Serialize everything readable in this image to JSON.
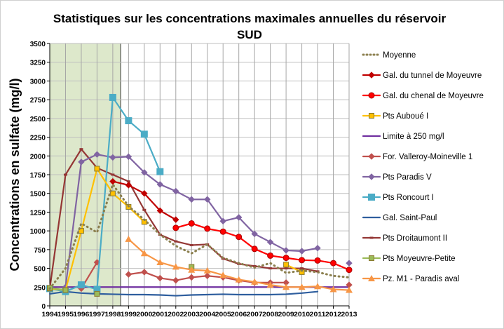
{
  "chart_data": {
    "type": "line",
    "title": "Statistiques sur les concentrations maximales annuelles du réservoir",
    "title_line2": "SUD",
    "xlabel": "",
    "ylabel": "Concentrations en sulfate   (mg/l)",
    "ylim": [
      0,
      3500
    ],
    "yticks": [
      0,
      250,
      500,
      750,
      1000,
      1250,
      1500,
      1750,
      2000,
      2250,
      2500,
      2750,
      3000,
      3250,
      3500
    ],
    "x": [
      1994,
      1995,
      1996,
      1997,
      1998,
      1999,
      2000,
      2001,
      2002,
      2003,
      2004,
      2005,
      2006,
      2007,
      2008,
      2009,
      2010,
      2011,
      2012,
      2013
    ],
    "grid": true,
    "legend_position": "right",
    "shaded_period": [
      1994,
      1998.5
    ],
    "shade_color": "#DDE8CB",
    "series": [
      {
        "name": "Moyenne",
        "color": "#8B7F4E",
        "dash": true,
        "marker": "none",
        "values": [
          230,
          500,
          1100,
          980,
          1620,
          1330,
          1150,
          950,
          800,
          700,
          820,
          640,
          570,
          510,
          570,
          440,
          470,
          450,
          400,
          380
        ]
      },
      {
        "name": "Gal. du tunnel de Moyeuvre",
        "color": "#C00000",
        "marker": "diamond",
        "values": [
          null,
          null,
          null,
          null,
          1660,
          1610,
          1500,
          1270,
          1150,
          null,
          null,
          null,
          null,
          null,
          null,
          null,
          null,
          null,
          null,
          null
        ]
      },
      {
        "name": "Gal. du chenal de Moyeuvre",
        "color": "#FF0000",
        "marker": "circle",
        "values": [
          null,
          null,
          null,
          null,
          null,
          null,
          null,
          null,
          1040,
          1100,
          1030,
          990,
          920,
          760,
          670,
          640,
          610,
          605,
          570,
          480
        ]
      },
      {
        "name": "Pts Auboué I",
        "color": "#FFC000",
        "marker": "square-small",
        "values": [
          230,
          210,
          1000,
          1830,
          1500,
          1320,
          1120,
          null,
          null,
          null,
          null,
          null,
          null,
          null,
          null,
          550,
          450,
          null,
          null,
          null
        ]
      },
      {
        "name": "Limite à 250 mg/l",
        "color": "#7030A0",
        "marker": "none",
        "values": [
          250,
          250,
          250,
          250,
          250,
          250,
          250,
          250,
          250,
          250,
          250,
          250,
          250,
          250,
          250,
          250,
          250,
          250,
          250,
          250
        ]
      },
      {
        "name": "For. Valleroy-Moineville 1",
        "color": "#C0504D",
        "marker": "diamond",
        "values": [
          null,
          null,
          230,
          580,
          null,
          420,
          450,
          370,
          340,
          380,
          400,
          380,
          340,
          310,
          310,
          310,
          null,
          null,
          null,
          280
        ]
      },
      {
        "name": "Pts Paradis V",
        "color": "#8064A2",
        "marker": "diamond",
        "values": [
          null,
          250,
          1920,
          2020,
          1980,
          1990,
          1780,
          1620,
          1530,
          1420,
          1420,
          1130,
          1180,
          960,
          850,
          740,
          730,
          770,
          null,
          570
        ]
      },
      {
        "name": "Pts Roncourt I",
        "color": "#4BACC6",
        "marker": "square",
        "values": [
          230,
          190,
          280,
          220,
          2780,
          2470,
          2290,
          1790,
          null,
          null,
          null,
          null,
          null,
          null,
          null,
          null,
          null,
          null,
          null,
          null
        ]
      },
      {
        "name": "Gal. Saint-Paul",
        "color": "#2E5E9E",
        "marker": "none",
        "values": [
          160,
          190,
          170,
          160,
          155,
          150,
          150,
          145,
          135,
          145,
          150,
          155,
          150,
          150,
          150,
          155,
          170,
          190,
          null,
          null
        ]
      },
      {
        "name": "Pts Droitaumont II",
        "color": "#943634",
        "marker": "dash",
        "values": [
          230,
          1750,
          2090,
          1840,
          1750,
          1660,
          1280,
          950,
          860,
          810,
          820,
          630,
          560,
          530,
          500,
          500,
          500,
          460,
          null,
          null
        ]
      },
      {
        "name": "Pts Moyeuvre-Petite",
        "color": "#9BBB59",
        "marker": "square-small",
        "values": [
          240,
          210,
          null,
          160,
          null,
          null,
          null,
          null,
          null,
          520,
          null,
          null,
          null,
          null,
          null,
          null,
          null,
          null,
          null,
          null
        ]
      },
      {
        "name": "Pz. M1 - Paradis aval",
        "color": "#F79646",
        "marker": "triangle",
        "values": [
          null,
          null,
          null,
          null,
          null,
          890,
          700,
          580,
          520,
          480,
          470,
          410,
          350,
          320,
          280,
          250,
          250,
          260,
          220,
          210
        ]
      }
    ]
  }
}
